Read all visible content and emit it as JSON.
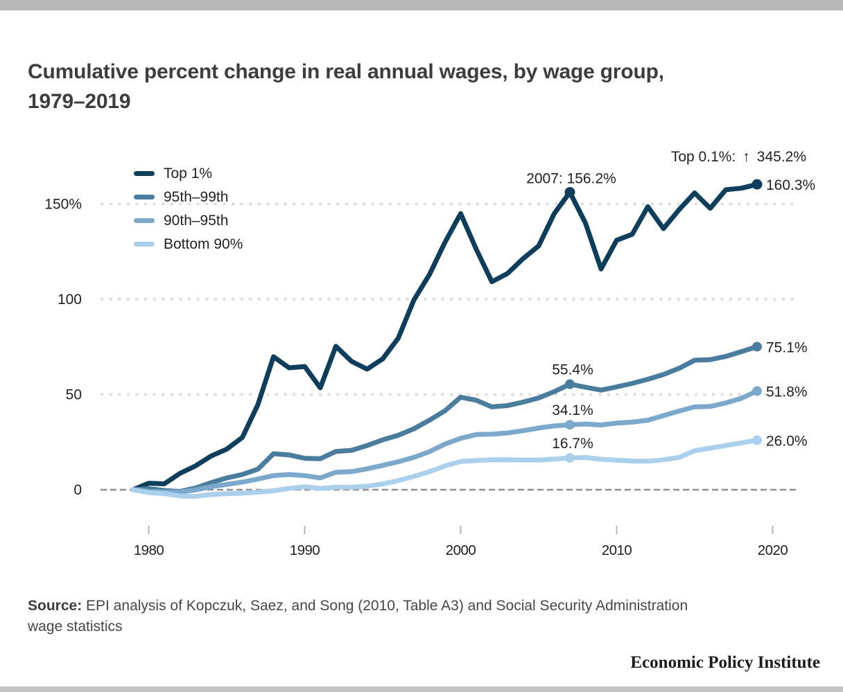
{
  "title": "Cumulative percent change in real annual wages, by wage group, 1979–2019",
  "top_bar_color": "#b9b9b9",
  "bottom_bar_color": "#c3c3c3",
  "legend": [
    {
      "label": "Top 1%",
      "color": "#0e3e5c"
    },
    {
      "label": "95th–99th",
      "color": "#4a7c9e"
    },
    {
      "label": "90th–95th",
      "color": "#7ca8cb"
    },
    {
      "label": "Bottom 90%",
      "color": "#abd0ed"
    }
  ],
  "source": {
    "label": "Source:",
    "lines": [
      "EPI analysis of Kopczuk, Saez, and Song (2010, Table A3) and Social Security Administration",
      "wage statistics"
    ]
  },
  "footer": {
    "brand": "Economic Policy Institute"
  },
  "chart_data": {
    "type": "line",
    "title": "Cumulative percent change in real annual wages, by wage group, 1979–2019",
    "xlabel": "",
    "ylabel": "",
    "xlim": [
      1977,
      2022
    ],
    "ylim": [
      -20,
      180
    ],
    "grid": "horizontal-dotted",
    "legend_position": "top-left-inside",
    "colors": {
      "gridline": "#dedede",
      "zero_line": "#8f8f8f",
      "tick": "#b5b5b5",
      "text": "#231f20"
    },
    "x_ticks": [
      1980,
      1990,
      2000,
      2010,
      2020
    ],
    "y_ticks": [
      {
        "value": 0,
        "label": "0"
      },
      {
        "value": 50,
        "label": "50"
      },
      {
        "value": 100,
        "label": "100"
      },
      {
        "value": 150,
        "label": "150%"
      }
    ],
    "marker_years": [
      2007,
      2019
    ],
    "x": [
      1979,
      1980,
      1981,
      1982,
      1983,
      1984,
      1985,
      1986,
      1987,
      1988,
      1989,
      1990,
      1991,
      1992,
      1993,
      1994,
      1995,
      1996,
      1997,
      1998,
      1999,
      2000,
      2001,
      2002,
      2003,
      2004,
      2005,
      2006,
      2007,
      2008,
      2009,
      2010,
      2011,
      2012,
      2013,
      2014,
      2015,
      2016,
      2017,
      2018,
      2019
    ],
    "series": [
      {
        "name": "Top 1%",
        "color": "#0e3e5c",
        "end_label": "160.3%",
        "values": [
          0,
          3.4,
          3.1,
          8.6,
          12.5,
          17.7,
          21.3,
          27.4,
          44.7,
          69.8,
          64.0,
          64.7,
          53.5,
          75.3,
          67.4,
          63.3,
          68.7,
          79.6,
          99.6,
          113.0,
          130.0,
          145.0,
          126.2,
          109.2,
          113.5,
          121.3,
          128.0,
          145.0,
          156.2,
          140.0,
          115.9,
          131.0,
          134.1,
          148.6,
          137.1,
          147.0,
          155.8,
          147.7,
          157.5,
          158.3,
          160.3
        ]
      },
      {
        "name": "95th–99th",
        "color": "#4a7c9e",
        "end_label": "75.1%",
        "values": [
          0,
          0.6,
          -0.4,
          -0.9,
          0.9,
          3.7,
          6.2,
          8.0,
          10.8,
          18.9,
          18.3,
          16.5,
          16.3,
          20.1,
          20.7,
          23.2,
          26.2,
          28.6,
          32.0,
          36.5,
          41.5,
          48.6,
          47.0,
          43.5,
          44.2,
          46.0,
          48.2,
          51.5,
          55.4,
          53.8,
          52.3,
          54.0,
          55.8,
          58.0,
          60.5,
          63.7,
          68.0,
          68.3,
          70.0,
          72.5,
          75.1
        ]
      },
      {
        "name": "90th–95th",
        "color": "#7ca8cb",
        "end_label": "51.8%",
        "values": [
          0,
          -0.9,
          -1.2,
          -1.2,
          -0.1,
          1.6,
          2.8,
          4.0,
          5.6,
          7.4,
          8.0,
          7.4,
          6.2,
          9.2,
          9.5,
          11.0,
          12.8,
          14.7,
          17.0,
          20.0,
          24.0,
          27.0,
          29.0,
          29.2,
          29.8,
          31.0,
          32.4,
          33.5,
          34.1,
          34.5,
          34.0,
          35.0,
          35.5,
          36.5,
          38.9,
          41.3,
          43.5,
          43.7,
          45.6,
          48.0,
          51.8
        ]
      },
      {
        "name": "Bottom 90%",
        "color": "#abd0ed",
        "end_label": "26.0%",
        "values": [
          0,
          -1.5,
          -2.0,
          -3.3,
          -3.5,
          -2.5,
          -2.1,
          -1.8,
          -1.3,
          -0.5,
          0.7,
          1.6,
          0.7,
          1.3,
          1.3,
          1.9,
          3.0,
          4.8,
          7.0,
          9.5,
          12.5,
          14.8,
          15.3,
          15.7,
          15.7,
          15.6,
          15.6,
          16.1,
          16.7,
          16.9,
          16.0,
          15.5,
          15.1,
          15.0,
          15.7,
          17.0,
          20.5,
          21.8,
          23.2,
          24.6,
          26.0
        ]
      }
    ],
    "annotations": [
      {
        "id": "top01",
        "text": "Top 0.1%: ↑ 345.2%",
        "parts": [
          "Top 0.1%:",
          "↑",
          "345.2%"
        ]
      },
      {
        "id": "peak2007",
        "text": "2007: 156.2%",
        "year": 2007,
        "series": "Top 1%"
      },
      {
        "id": "p9599_2007",
        "text": "55.4%",
        "year": 2007,
        "series": "95th–99th"
      },
      {
        "id": "p9095_2007",
        "text": "34.1%",
        "year": 2007,
        "series": "90th–95th"
      },
      {
        "id": "b90_2007",
        "text": "16.7%",
        "year": 2007,
        "series": "Bottom 90%"
      }
    ]
  }
}
